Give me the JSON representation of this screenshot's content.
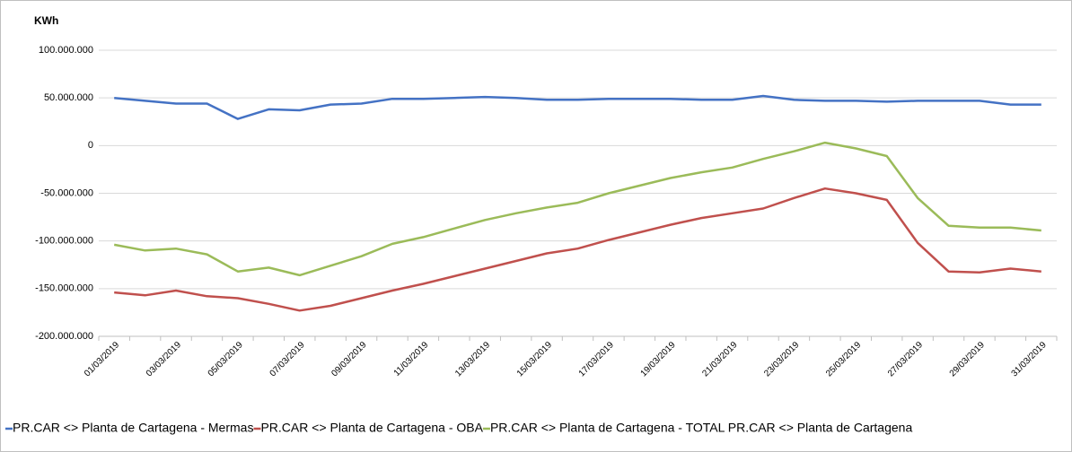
{
  "chart_data": {
    "type": "line",
    "y_label": "KWh",
    "categories": [
      "01/03/2019",
      null,
      "03/03/2019",
      null,
      "05/03/2019",
      null,
      "07/03/2019",
      null,
      "09/03/2019",
      null,
      "11/03/2019",
      null,
      "13/03/2019",
      null,
      "15/03/2019",
      null,
      "17/03/2019",
      null,
      "19/03/2019",
      null,
      "21/03/2019",
      null,
      "23/03/2019",
      null,
      "25/03/2019",
      null,
      "27/03/2019",
      null,
      "29/03/2019",
      null,
      "31/03/2019"
    ],
    "series": [
      {
        "name": "PR.CAR <> Planta de Cartagena - Mermas",
        "color": "#4472c4",
        "values": [
          50000000,
          47000000,
          44000000,
          44000000,
          28000000,
          38000000,
          37000000,
          43000000,
          44000000,
          49000000,
          49000000,
          50000000,
          51000000,
          50000000,
          48000000,
          48000000,
          49000000,
          49000000,
          49000000,
          48000000,
          48000000,
          52000000,
          48000000,
          47000000,
          47000000,
          46000000,
          47000000,
          47000000,
          47000000,
          43000000,
          43000000
        ]
      },
      {
        "name": "PR.CAR <> Planta de Cartagena - OBA",
        "color": "#c0504d",
        "values": [
          -154000000,
          -157000000,
          -152000000,
          -158000000,
          -160000000,
          -166000000,
          -173000000,
          -168000000,
          -160000000,
          -152000000,
          -145000000,
          -137000000,
          -129000000,
          -121000000,
          -113000000,
          -108000000,
          -99000000,
          -91000000,
          -83000000,
          -76000000,
          -71000000,
          -66000000,
          -55000000,
          -45000000,
          -50000000,
          -57000000,
          -102000000,
          -132000000,
          -133000000,
          -129000000,
          -132000000
        ]
      },
      {
        "name": "PR.CAR <> Planta de Cartagena - TOTAL PR.CAR <> Planta de Cartagena",
        "color": "#9bbb59",
        "values": [
          -104000000,
          -110000000,
          -108000000,
          -114000000,
          -132000000,
          -128000000,
          -136000000,
          -126000000,
          -116000000,
          -103000000,
          -96000000,
          -87000000,
          -78000000,
          -71000000,
          -65000000,
          -60000000,
          -50000000,
          -42000000,
          -34000000,
          -28000000,
          -23000000,
          -14000000,
          -6000000,
          3000000,
          -3000000,
          -11000000,
          -55000000,
          -84000000,
          -86000000,
          -86000000,
          -89000000
        ]
      }
    ],
    "ylim": [
      -200000000,
      100000000
    ],
    "yticks": [
      {
        "value": -200000000,
        "label": "-200.000.000"
      },
      {
        "value": -150000000,
        "label": "-150.000.000"
      },
      {
        "value": -100000000,
        "label": "-100.000.000"
      },
      {
        "value": -50000000,
        "label": "-50.000.000"
      },
      0,
      {
        "value": 50000000,
        "label": "50.000.000"
      },
      {
        "value": 100000000,
        "label": "100.000.000"
      }
    ],
    "grid": true,
    "legend": "bottom"
  }
}
